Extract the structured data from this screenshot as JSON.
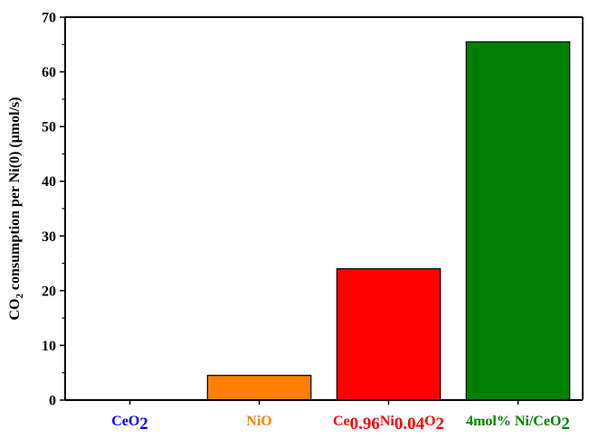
{
  "chart_data": {
    "type": "bar",
    "ylabel": {
      "parts": [
        {
          "text": "CO",
          "sub": false
        },
        {
          "text": "2",
          "sub": true
        },
        {
          "text": " consumption per Ni(0) (μmol/s)",
          "sub": false
        }
      ]
    },
    "ylim": [
      0,
      70
    ],
    "yticks": [
      0,
      10,
      20,
      30,
      40,
      50,
      60,
      70
    ],
    "grid": false,
    "legend": "none",
    "categories": [
      {
        "label": [
          {
            "text": "CeO",
            "sub": false
          },
          {
            "text": "2",
            "sub": true
          }
        ],
        "value": 0,
        "bar_color": "#0000ff",
        "label_color": "#0000ff"
      },
      {
        "label": [
          {
            "text": "NiO",
            "sub": false
          }
        ],
        "value": 4.5,
        "bar_color": "#ff8000",
        "label_color": "#ff8000"
      },
      {
        "label": [
          {
            "text": "Ce",
            "sub": false
          },
          {
            "text": "0.96",
            "sub": true
          },
          {
            "text": "Ni",
            "sub": false
          },
          {
            "text": "0.04",
            "sub": true
          },
          {
            "text": "O",
            "sub": false
          },
          {
            "text": "2",
            "sub": true
          }
        ],
        "value": 24,
        "bar_color": "#ff0000",
        "label_color": "#ff0000"
      },
      {
        "label": [
          {
            "text": "4mol% Ni/CeO",
            "sub": false
          },
          {
            "text": "2",
            "sub": true
          }
        ],
        "value": 65.5,
        "bar_color": "#008000",
        "label_color": "#008000"
      }
    ]
  }
}
